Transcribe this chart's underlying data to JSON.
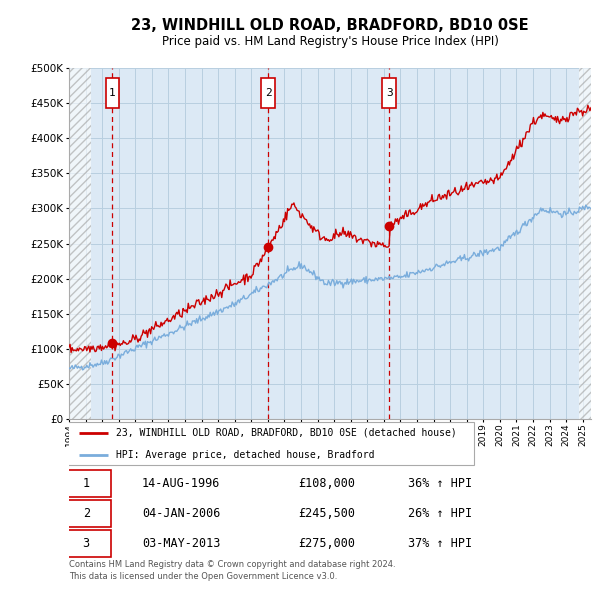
{
  "title": "23, WINDHILL OLD ROAD, BRADFORD, BD10 0SE",
  "subtitle": "Price paid vs. HM Land Registry's House Price Index (HPI)",
  "legend_label_red": "23, WINDHILL OLD ROAD, BRADFORD, BD10 0SE (detached house)",
  "legend_label_blue": "HPI: Average price, detached house, Bradford",
  "footer1": "Contains HM Land Registry data © Crown copyright and database right 2024.",
  "footer2": "This data is licensed under the Open Government Licence v3.0.",
  "sales": [
    {
      "num": 1,
      "date": "14-AUG-1996",
      "price": "£108,000",
      "hpi": "36% ↑ HPI"
    },
    {
      "num": 2,
      "date": "04-JAN-2006",
      "price": "£245,500",
      "hpi": "26% ↑ HPI"
    },
    {
      "num": 3,
      "date": "03-MAY-2013",
      "price": "£275,000",
      "hpi": "37% ↑ HPI"
    }
  ],
  "sale_years": [
    1996.62,
    2006.01,
    2013.33
  ],
  "sale_prices": [
    108000,
    245500,
    275000
  ],
  "vline_color": "#cc0000",
  "dot_color": "#cc0000",
  "red_line_color": "#cc0000",
  "blue_line_color": "#7aaddc",
  "background_color": "#ffffff",
  "plot_bg_color": "#dce9f5",
  "grid_color": "#b8cfe0",
  "ylim": [
    0,
    500000
  ],
  "yticks": [
    0,
    50000,
    100000,
    150000,
    200000,
    250000,
    300000,
    350000,
    400000,
    450000,
    500000
  ],
  "xmin": 1994.0,
  "xmax": 2025.5,
  "xtick_years": [
    1994,
    1995,
    1996,
    1997,
    1998,
    1999,
    2000,
    2001,
    2002,
    2003,
    2004,
    2005,
    2006,
    2007,
    2008,
    2009,
    2010,
    2011,
    2012,
    2013,
    2014,
    2015,
    2016,
    2017,
    2018,
    2019,
    2020,
    2021,
    2022,
    2023,
    2024,
    2025
  ],
  "hatch_region_left_end": 1995.3,
  "hatch_region_right_start": 2024.8
}
